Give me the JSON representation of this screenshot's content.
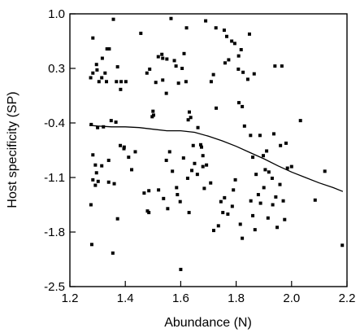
{
  "chart_data": {
    "type": "scatter",
    "title": "",
    "xlabel": "Abundance (N)",
    "ylabel": "Host specificity (SP)",
    "xlim": [
      1.2,
      2.2
    ],
    "ylim": [
      -2.5,
      1.0
    ],
    "xticks": [
      1.2,
      1.4,
      1.6,
      1.8,
      2.0,
      2.2
    ],
    "yticks": [
      1.0,
      0.3,
      -0.4,
      -1.1,
      -1.8,
      -2.5
    ],
    "xtick_labels": [
      "1.2",
      "1.4",
      "1.6",
      "1.8",
      "2.0",
      "2.2"
    ],
    "ytick_labels": [
      "1.0",
      "0.3",
      "-0.4",
      "-1.1",
      "-1.8",
      "-2.5"
    ],
    "grid": false,
    "legend": "none",
    "marker_color": "#000000",
    "series": [
      {
        "kind": "points",
        "points": [
          [
            1.283,
            0.69
          ],
          [
            1.275,
            0.18
          ],
          [
            1.283,
            0.24
          ],
          [
            1.296,
            0.35
          ],
          [
            1.298,
            0.28
          ],
          [
            1.305,
            0.13
          ],
          [
            1.315,
            0.18
          ],
          [
            1.317,
            0.43
          ],
          [
            1.334,
            0.55
          ],
          [
            1.327,
            0.24
          ],
          [
            1.342,
            0.55
          ],
          [
            1.332,
            0.13
          ],
          [
            1.357,
            0.93
          ],
          [
            1.368,
            0.13
          ],
          [
            1.372,
            0.32
          ],
          [
            1.385,
            0.13
          ],
          [
            1.383,
            0.03
          ],
          [
            1.402,
            0.13
          ],
          [
            1.349,
            -0.37
          ],
          [
            1.366,
            -0.39
          ],
          [
            1.321,
            -0.45
          ],
          [
            1.3,
            -0.46
          ],
          [
            1.277,
            -0.42
          ],
          [
            1.283,
            -0.81
          ],
          [
            1.292,
            -0.94
          ],
          [
            1.296,
            -1.04
          ],
          [
            1.283,
            -1.13
          ],
          [
            1.292,
            -1.2
          ],
          [
            1.302,
            -1.15
          ],
          [
            1.276,
            -1.45
          ],
          [
            1.279,
            -1.96
          ],
          [
            1.315,
            -0.95
          ],
          [
            1.34,
            -0.88
          ],
          [
            1.34,
            -1.16
          ],
          [
            1.36,
            -1.18
          ],
          [
            1.372,
            -1.63
          ],
          [
            1.355,
            -2.07
          ],
          [
            1.382,
            -0.69
          ],
          [
            1.395,
            -0.73
          ],
          [
            1.396,
            -0.71
          ],
          [
            1.412,
            -0.84
          ],
          [
            1.423,
            -1.0
          ],
          [
            1.436,
            -0.77
          ],
          [
            1.468,
            -1.3
          ],
          [
            1.48,
            -1.53
          ],
          [
            1.485,
            -1.27
          ],
          [
            1.485,
            -1.55
          ],
          [
            1.497,
            -0.32
          ],
          [
            1.5,
            -0.25
          ],
          [
            1.502,
            -0.3
          ],
          [
            1.456,
            0.75
          ],
          [
            1.478,
            0.24
          ],
          [
            1.488,
            0.29
          ],
          [
            1.51,
            0.12
          ],
          [
            1.519,
            0.45
          ],
          [
            1.532,
            0.48
          ],
          [
            1.535,
            0.43
          ],
          [
            1.535,
            0.15
          ],
          [
            1.548,
            -0.02
          ],
          [
            1.55,
            0.42
          ],
          [
            1.565,
            0.94
          ],
          [
            1.577,
            0.4
          ],
          [
            1.583,
            0.33
          ],
          [
            1.592,
            0.11
          ],
          [
            1.605,
            0.3
          ],
          [
            1.612,
            0.49
          ],
          [
            1.619,
            0.13
          ],
          [
            1.621,
            0.82
          ],
          [
            1.627,
            -0.36
          ],
          [
            1.631,
            -0.26
          ],
          [
            1.636,
            -0.33
          ],
          [
            1.645,
            -0.69
          ],
          [
            1.65,
            -0.92
          ],
          [
            1.662,
            -0.46
          ],
          [
            1.672,
            -0.68
          ],
          [
            1.675,
            -0.71
          ],
          [
            1.68,
            -0.96
          ],
          [
            1.685,
            -1.24
          ],
          [
            1.548,
            -0.88
          ],
          [
            1.56,
            -0.77
          ],
          [
            1.57,
            -1.02
          ],
          [
            1.585,
            -1.23
          ],
          [
            1.598,
            -1.41
          ],
          [
            1.61,
            -0.85
          ],
          [
            1.625,
            -1.11
          ],
          [
            1.63,
            -1.55
          ],
          [
            1.64,
            -1.01
          ],
          [
            1.66,
            -1.06
          ],
          [
            1.68,
            -0.82
          ],
          [
            1.52,
            -1.26
          ],
          [
            1.538,
            -1.37
          ],
          [
            1.553,
            -1.5
          ],
          [
            1.588,
            -1.32
          ],
          [
            1.6,
            -2.28
          ],
          [
            1.693,
            -0.94
          ],
          [
            1.708,
            -1.17
          ],
          [
            1.719,
            -1.78
          ],
          [
            1.736,
            -1.72
          ],
          [
            1.745,
            -1.41
          ],
          [
            1.752,
            -1.55
          ],
          [
            1.758,
            -1.36
          ],
          [
            1.77,
            -1.57
          ],
          [
            1.786,
            -1.47
          ],
          [
            1.79,
            -1.26
          ],
          [
            1.797,
            -1.13
          ],
          [
            1.71,
            0.13
          ],
          [
            1.718,
            0.22
          ],
          [
            1.728,
            -0.21
          ],
          [
            1.76,
            0.37
          ],
          [
            1.773,
            0.41
          ],
          [
            1.69,
            0.91
          ],
          [
            1.727,
            0.82
          ],
          [
            1.757,
            0.79
          ],
          [
            1.766,
            0.71
          ],
          [
            1.784,
            0.65
          ],
          [
            1.795,
            0.62
          ],
          [
            1.809,
            0.46
          ],
          [
            1.818,
            0.54
          ],
          [
            1.808,
            0.29
          ],
          [
            1.825,
            0.25
          ],
          [
            1.842,
            0.16
          ],
          [
            1.848,
            0.74
          ],
          [
            1.865,
            0.23
          ],
          [
            1.81,
            -0.14
          ],
          [
            1.822,
            -0.19
          ],
          [
            1.83,
            -0.44
          ],
          [
            1.852,
            -0.56
          ],
          [
            1.86,
            -0.84
          ],
          [
            1.872,
            -1.06
          ],
          [
            1.886,
            -0.56
          ],
          [
            1.898,
            -0.82
          ],
          [
            1.905,
            -1.0
          ],
          [
            1.91,
            -0.76
          ],
          [
            1.918,
            -1.03
          ],
          [
            1.93,
            -1.11
          ],
          [
            1.815,
            -1.7
          ],
          [
            1.822,
            -1.88
          ],
          [
            1.853,
            -1.4
          ],
          [
            1.86,
            -1.59
          ],
          [
            1.868,
            -1.77
          ],
          [
            1.88,
            -1.32
          ],
          [
            1.888,
            -1.43
          ],
          [
            1.9,
            -1.23
          ],
          [
            1.915,
            -1.62
          ],
          [
            1.932,
            -1.45
          ],
          [
            1.943,
            -1.35
          ],
          [
            1.948,
            -1.74
          ],
          [
            1.958,
            -1.19
          ],
          [
            1.97,
            -1.4
          ],
          [
            1.975,
            -1.64
          ],
          [
            1.94,
            0.33
          ],
          [
            1.965,
            0.33
          ],
          [
            1.936,
            -0.54
          ],
          [
            1.96,
            -0.69
          ],
          [
            1.985,
            -0.98
          ],
          [
            2.0,
            -0.96
          ],
          [
            1.98,
            -0.66
          ],
          [
            2.032,
            -0.37
          ],
          [
            2.085,
            -1.39
          ],
          [
            2.12,
            -1.02
          ],
          [
            2.183,
            -1.97
          ]
        ]
      },
      {
        "kind": "smooth-line",
        "points": [
          [
            1.27,
            -0.43
          ],
          [
            1.3,
            -0.44
          ],
          [
            1.35,
            -0.45
          ],
          [
            1.4,
            -0.45
          ],
          [
            1.45,
            -0.46
          ],
          [
            1.5,
            -0.48
          ],
          [
            1.55,
            -0.5
          ],
          [
            1.6,
            -0.5
          ],
          [
            1.65,
            -0.52
          ],
          [
            1.7,
            -0.57
          ],
          [
            1.75,
            -0.63
          ],
          [
            1.8,
            -0.7
          ],
          [
            1.85,
            -0.78
          ],
          [
            1.9,
            -0.86
          ],
          [
            1.95,
            -0.95
          ],
          [
            2.0,
            -1.03
          ],
          [
            2.05,
            -1.1
          ],
          [
            2.1,
            -1.17
          ],
          [
            2.15,
            -1.23
          ],
          [
            2.185,
            -1.28
          ]
        ]
      }
    ]
  }
}
